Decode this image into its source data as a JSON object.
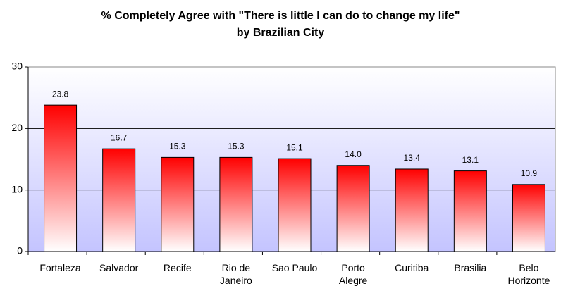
{
  "chart_data": {
    "type": "bar",
    "title": "% Completely Agree with \"There is little I can do to change my life\"",
    "subtitle": "by Brazilian City",
    "categories": [
      "Fortaleza",
      "Salvador",
      "Recife",
      "Rio de Janeiro",
      "Sao Paulo",
      "Porto Alegre",
      "Curitiba",
      "Brasilia",
      "Belo Horizonte"
    ],
    "values": [
      23.8,
      16.7,
      15.3,
      15.3,
      15.1,
      14.0,
      13.4,
      13.1,
      10.9
    ],
    "value_labels": [
      "23.8",
      "16.7",
      "15.3",
      "15.3",
      "15.1",
      "14.0",
      "13.4",
      "13.1",
      "10.9"
    ],
    "color": "#ff0000",
    "ylim": [
      0,
      30
    ],
    "yticks": [
      0,
      10,
      20,
      30
    ],
    "grid": true
  }
}
